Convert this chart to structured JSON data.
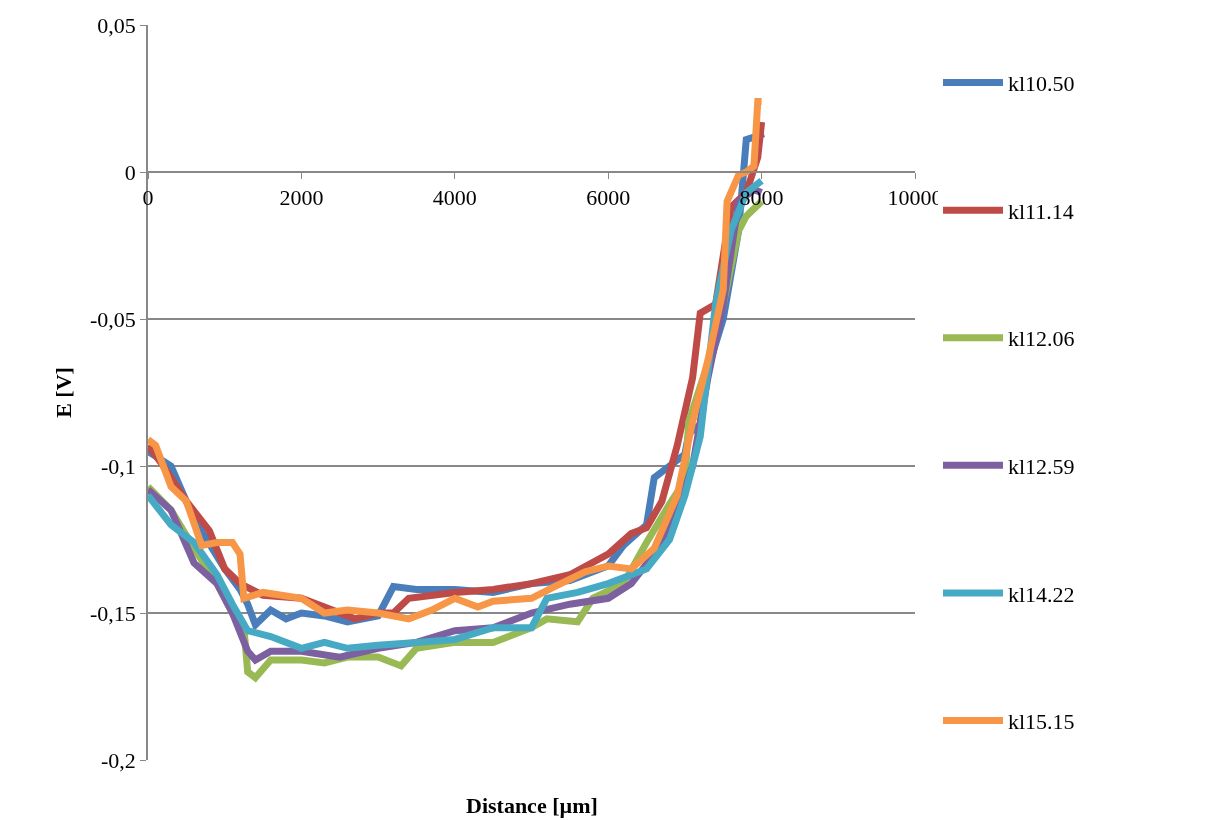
{
  "chart_data": {
    "type": "line",
    "xlabel": "Distance [µm]",
    "ylabel": "E [V]",
    "xlim": [
      0,
      10000
    ],
    "xticks": [
      0,
      2000,
      4000,
      6000,
      8000,
      10000
    ],
    "ylim": [
      -0.2,
      0.05
    ],
    "yticks": [
      {
        "value": -0.2,
        "label": "-0,2"
      },
      {
        "value": -0.15,
        "label": "-0,15"
      },
      {
        "value": -0.1,
        "label": "-0,1"
      },
      {
        "value": -0.05,
        "label": "-0,05"
      },
      {
        "value": 0,
        "label": "0"
      },
      {
        "value": 0.05,
        "label": "0,05"
      }
    ],
    "grid": "y",
    "legend": "right",
    "marker": "none",
    "line_style": "solid",
    "series": [
      {
        "name": "kl10.50",
        "color": "#4a7ebb",
        "x": [
          0,
          300,
          600,
          1000,
          1200,
          1300,
          1400,
          1600,
          1800,
          2000,
          2300,
          2600,
          3000,
          3200,
          3500,
          4000,
          4500,
          5000,
          5500,
          6000,
          6200,
          6500,
          6600,
          6800,
          7000,
          7050,
          7200,
          7300,
          7500,
          7700,
          7800,
          8030
        ],
        "values": [
          -0.095,
          -0.1,
          -0.118,
          -0.135,
          -0.142,
          -0.147,
          -0.154,
          -0.149,
          -0.152,
          -0.15,
          -0.151,
          -0.153,
          -0.151,
          -0.141,
          -0.142,
          -0.142,
          -0.143,
          -0.14,
          -0.139,
          -0.134,
          -0.127,
          -0.12,
          -0.104,
          -0.1,
          -0.096,
          -0.089,
          -0.086,
          -0.067,
          -0.05,
          -0.02,
          0.011,
          0.013
        ]
      },
      {
        "name": "kl11.14",
        "color": "#be4b48",
        "x": [
          0,
          200,
          500,
          800,
          1000,
          1200,
          1500,
          2000,
          2300,
          2700,
          3000,
          3200,
          3400,
          4000,
          4500,
          5000,
          5500,
          6000,
          6300,
          6500,
          6700,
          6900,
          7100,
          7200,
          7400,
          7600,
          7800,
          7950,
          8000
        ],
        "values": [
          -0.093,
          -0.1,
          -0.112,
          -0.122,
          -0.135,
          -0.14,
          -0.144,
          -0.145,
          -0.148,
          -0.152,
          -0.15,
          -0.15,
          -0.145,
          -0.143,
          -0.142,
          -0.14,
          -0.137,
          -0.13,
          -0.123,
          -0.121,
          -0.112,
          -0.093,
          -0.07,
          -0.048,
          -0.045,
          -0.012,
          -0.007,
          0.005,
          0.017
        ]
      },
      {
        "name": "kl12.06",
        "color": "#98b954",
        "x": [
          0,
          300,
          600,
          900,
          1100,
          1250,
          1300,
          1400,
          1600,
          2000,
          2300,
          2600,
          3000,
          3300,
          3500,
          4000,
          4500,
          5000,
          5200,
          5600,
          5800,
          6200,
          6500,
          6800,
          7000,
          7050,
          7300,
          7500,
          7700,
          7800,
          8000
        ],
        "values": [
          -0.107,
          -0.115,
          -0.128,
          -0.14,
          -0.15,
          -0.155,
          -0.17,
          -0.172,
          -0.166,
          -0.166,
          -0.167,
          -0.165,
          -0.165,
          -0.168,
          -0.162,
          -0.16,
          -0.16,
          -0.155,
          -0.152,
          -0.153,
          -0.145,
          -0.14,
          -0.126,
          -0.113,
          -0.105,
          -0.085,
          -0.065,
          -0.045,
          -0.02,
          -0.015,
          -0.01
        ]
      },
      {
        "name": "kl12.59",
        "color": "#7d60a0",
        "x": [
          0,
          300,
          600,
          900,
          1100,
          1300,
          1400,
          1600,
          2000,
          2500,
          3000,
          3500,
          4000,
          4500,
          5000,
          5500,
          6000,
          6300,
          6600,
          6900,
          7100,
          7300,
          7500,
          7700,
          7900,
          8000
        ],
        "values": [
          -0.108,
          -0.115,
          -0.133,
          -0.14,
          -0.15,
          -0.163,
          -0.166,
          -0.163,
          -0.163,
          -0.165,
          -0.162,
          -0.16,
          -0.156,
          -0.155,
          -0.15,
          -0.147,
          -0.145,
          -0.14,
          -0.13,
          -0.115,
          -0.1,
          -0.07,
          -0.045,
          -0.01,
          -0.006,
          -0.007
        ]
      },
      {
        "name": "kl14.22",
        "color": "#46aac5",
        "x": [
          0,
          300,
          600,
          900,
          1100,
          1300,
          1600,
          2000,
          2300,
          2600,
          3000,
          3500,
          4000,
          4500,
          5000,
          5200,
          5600,
          6000,
          6500,
          6800,
          7000,
          7200,
          7400,
          7600,
          7800,
          8000
        ],
        "values": [
          -0.11,
          -0.12,
          -0.126,
          -0.137,
          -0.147,
          -0.156,
          -0.158,
          -0.162,
          -0.16,
          -0.162,
          -0.161,
          -0.16,
          -0.159,
          -0.155,
          -0.155,
          -0.145,
          -0.143,
          -0.14,
          -0.135,
          -0.125,
          -0.11,
          -0.09,
          -0.045,
          -0.02,
          -0.007,
          -0.003
        ]
      },
      {
        "name": "kl15.15",
        "color": "#f79646",
        "x": [
          0,
          100,
          300,
          500,
          700,
          900,
          1100,
          1200,
          1250,
          1500,
          2000,
          2300,
          2600,
          3000,
          3400,
          3700,
          4000,
          4300,
          4500,
          5000,
          5300,
          5700,
          6000,
          6300,
          6600,
          6900,
          7100,
          7300,
          7500,
          7550,
          7700,
          7800,
          7900,
          7950,
          8000
        ],
        "values": [
          -0.091,
          -0.093,
          -0.107,
          -0.112,
          -0.127,
          -0.126,
          -0.126,
          -0.13,
          -0.145,
          -0.143,
          -0.145,
          -0.15,
          -0.149,
          -0.15,
          -0.152,
          -0.149,
          -0.145,
          -0.148,
          -0.146,
          -0.145,
          -0.141,
          -0.136,
          -0.134,
          -0.135,
          -0.128,
          -0.11,
          -0.085,
          -0.064,
          -0.04,
          -0.01,
          -0.001,
          0,
          0.002,
          0.024,
          0.024
        ]
      }
    ]
  }
}
